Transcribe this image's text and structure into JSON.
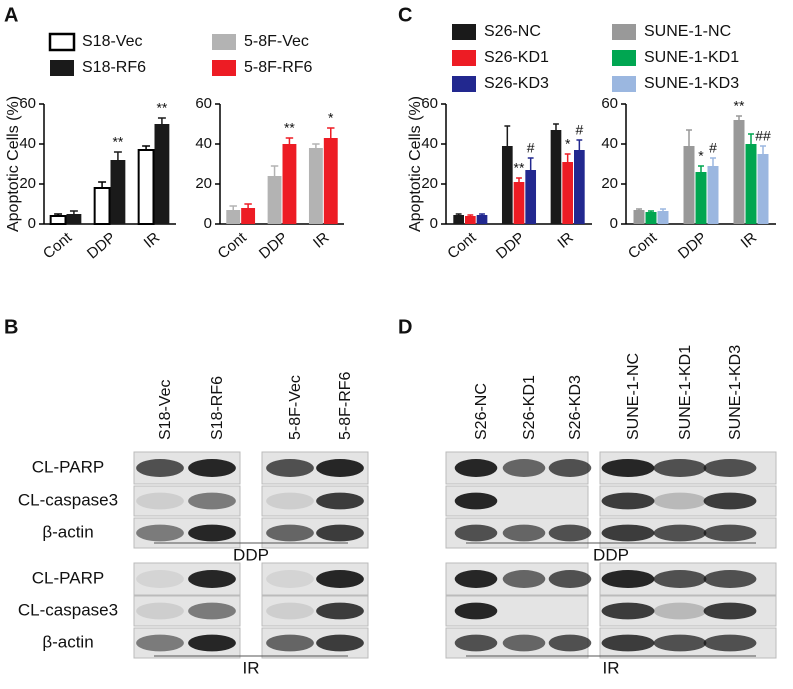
{
  "panels": [
    "A",
    "B",
    "C",
    "D"
  ],
  "chart_data": [
    {
      "type": "bar",
      "ylabel": "Apoptotic Cells (%)",
      "categories": [
        "Cont",
        "DDP",
        "IR"
      ],
      "series": [
        {
          "name": "S18-Vec",
          "color": "#ffffff",
          "edge": "#000000",
          "values": [
            4,
            18,
            37
          ],
          "errors": [
            1,
            3,
            2
          ]
        },
        {
          "name": "S18-RF6",
          "color": "#1a1a1a",
          "values": [
            5,
            32,
            50
          ],
          "errors": [
            1.5,
            4,
            3
          ]
        }
      ],
      "ylim": [
        0,
        60
      ],
      "yticks": [
        0,
        20,
        40,
        60
      ],
      "annotations": [
        {
          "text": "**",
          "category": "DDP",
          "series": "S18-RF6"
        },
        {
          "text": "**",
          "category": "IR",
          "series": "S18-RF6"
        }
      ]
    },
    {
      "type": "bar",
      "categories": [
        "Cont",
        "DDP",
        "IR"
      ],
      "series": [
        {
          "name": "5-8F-Vec",
          "color": "#b3b3b3",
          "values": [
            7,
            24,
            38
          ],
          "errors": [
            2,
            5,
            2
          ]
        },
        {
          "name": "5-8F-RF6",
          "color": "#ed1c24",
          "values": [
            8,
            40,
            43
          ],
          "errors": [
            2,
            3,
            5
          ]
        }
      ],
      "ylim": [
        0,
        60
      ],
      "yticks": [
        0,
        20,
        40,
        60
      ],
      "annotations": [
        {
          "text": "**",
          "category": "DDP",
          "series": "5-8F-RF6"
        },
        {
          "text": "*",
          "category": "IR",
          "series": "5-8F-RF6"
        }
      ]
    },
    {
      "type": "bar",
      "ylabel": "Apoptotic Cells (%)",
      "categories": [
        "Cont",
        "DDP",
        "IR"
      ],
      "series": [
        {
          "name": "S26-NC",
          "color": "#1a1a1a",
          "values": [
            4.5,
            39,
            47
          ],
          "errors": [
            0.5,
            10,
            3
          ]
        },
        {
          "name": "S26-KD1",
          "color": "#ed1c24",
          "values": [
            4,
            21,
            31
          ],
          "errors": [
            0.5,
            2,
            4
          ]
        },
        {
          "name": "S26-KD3",
          "color": "#22288f",
          "values": [
            4.5,
            27,
            37
          ],
          "errors": [
            0.5,
            6,
            5
          ]
        }
      ],
      "ylim": [
        0,
        60
      ],
      "yticks": [
        0,
        20,
        40,
        60
      ],
      "annotations": [
        {
          "text": "**",
          "category": "DDP",
          "series": "S26-KD1"
        },
        {
          "text": "#",
          "category": "DDP",
          "series": "S26-KD3"
        },
        {
          "text": "*",
          "category": "IR",
          "series": "S26-KD1"
        },
        {
          "text": "#",
          "category": "IR",
          "series": "S26-KD3"
        }
      ]
    },
    {
      "type": "bar",
      "categories": [
        "Cont",
        "DDP",
        "IR"
      ],
      "series": [
        {
          "name": "SUNE-1-NC",
          "color": "#999999",
          "values": [
            7,
            39,
            52
          ],
          "errors": [
            0.5,
            8,
            2
          ]
        },
        {
          "name": "SUNE-1-KD1",
          "color": "#00a651",
          "values": [
            6,
            26,
            40
          ],
          "errors": [
            0.5,
            3,
            5
          ]
        },
        {
          "name": "SUNE-1-KD3",
          "color": "#9bb7e0",
          "values": [
            6.5,
            29,
            35
          ],
          "errors": [
            1,
            4,
            4
          ]
        }
      ],
      "ylim": [
        0,
        60
      ],
      "yticks": [
        0,
        20,
        40,
        60
      ],
      "annotations": [
        {
          "text": "**",
          "category": "IR",
          "series": "SUNE-1-NC"
        },
        {
          "text": "*",
          "category": "DDP",
          "series": "SUNE-1-KD1"
        },
        {
          "text": "#",
          "category": "DDP",
          "series": "SUNE-1-KD3"
        },
        {
          "text": "##",
          "category": "IR",
          "series": "SUNE-1-KD3"
        }
      ]
    }
  ],
  "blots": [
    {
      "lanes": [
        [
          "S18-Vec",
          "S18-RF6"
        ],
        [
          "5-8F-Vec",
          "5-8F-RF6"
        ]
      ],
      "rows": [
        "CL-PARP",
        "CL-caspase3",
        "β-actin"
      ],
      "conditions": [
        "DDP",
        "IR"
      ]
    },
    {
      "lanes": [
        [
          "S26-NC",
          "S26-KD1",
          "S26-KD3"
        ],
        [
          "SUNE-1-NC",
          "SUNE-1-KD1",
          "SUNE-1-KD3"
        ]
      ],
      "conditions": [
        "DDP",
        "IR"
      ]
    }
  ]
}
